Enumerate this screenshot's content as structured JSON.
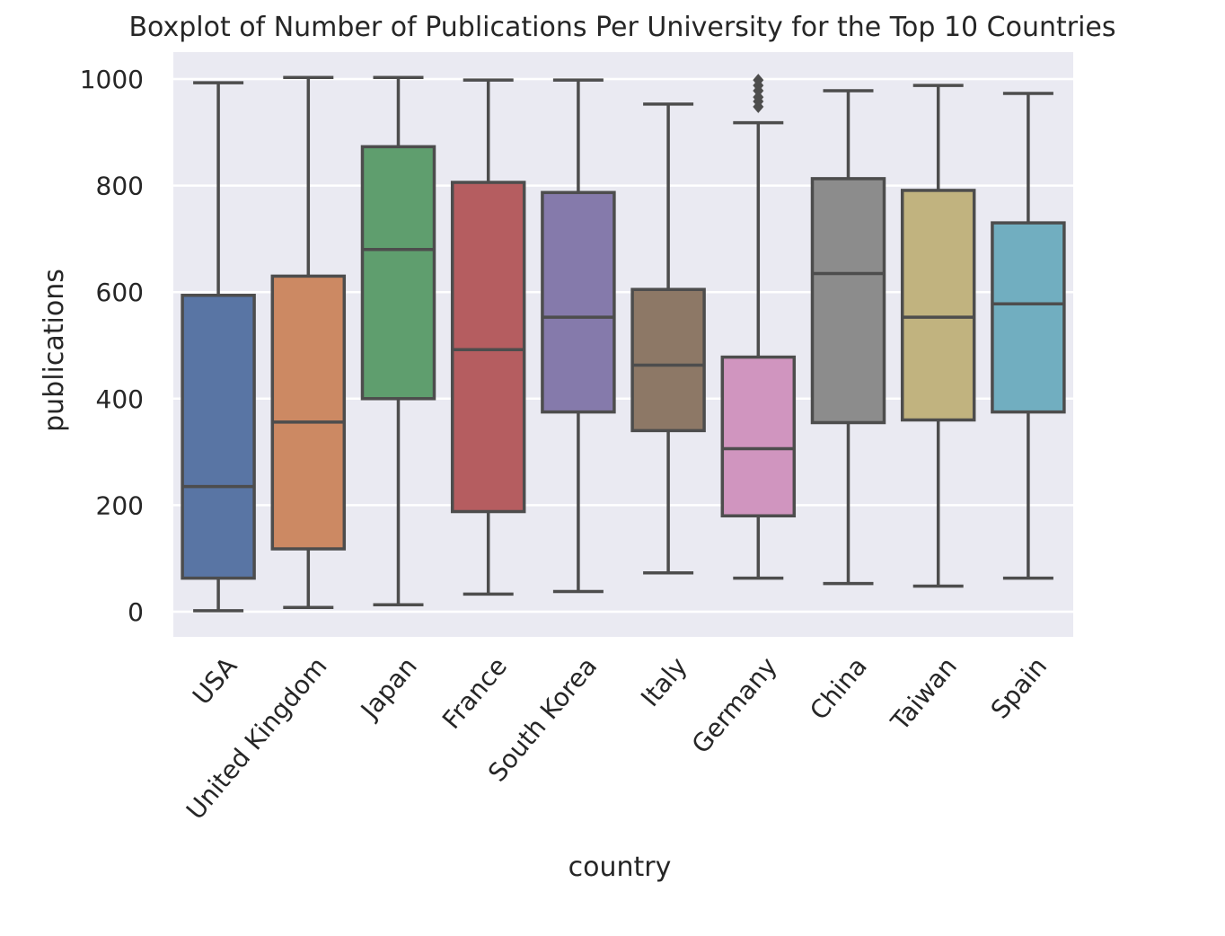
{
  "chart_data": {
    "type": "boxplot",
    "title": "Boxplot of Number of Publications Per University for the Top 10 Countries",
    "xlabel": "country",
    "ylabel": "publications",
    "ylim": [
      -45,
      1050
    ],
    "yticks": [
      0,
      200,
      400,
      600,
      800,
      1000
    ],
    "grid": true,
    "background": "#eaeaf2",
    "grid_color": "#ffffff",
    "line_color": "#4d4d4d",
    "categories": [
      "USA",
      "United Kingdom",
      "Japan",
      "France",
      "South Korea",
      "Italy",
      "Germany",
      "China",
      "Taiwan",
      "Spain"
    ],
    "boxes": [
      {
        "country": "USA",
        "color": "#5975a4",
        "whislo": 2,
        "q1": 63,
        "med": 235,
        "q3": 594,
        "whishi": 993,
        "fliers": []
      },
      {
        "country": "United Kingdom",
        "color": "#cc8963",
        "whislo": 8,
        "q1": 118,
        "med": 356,
        "q3": 630,
        "whishi": 1003,
        "fliers": []
      },
      {
        "country": "Japan",
        "color": "#5f9e6e",
        "whislo": 13,
        "q1": 400,
        "med": 680,
        "q3": 873,
        "whishi": 1003,
        "fliers": []
      },
      {
        "country": "France",
        "color": "#b55d60",
        "whislo": 33,
        "q1": 188,
        "med": 492,
        "q3": 806,
        "whishi": 998,
        "fliers": []
      },
      {
        "country": "South Korea",
        "color": "#857aab",
        "whislo": 38,
        "q1": 375,
        "med": 553,
        "q3": 787,
        "whishi": 998,
        "fliers": []
      },
      {
        "country": "Italy",
        "color": "#8d7866",
        "whislo": 73,
        "q1": 340,
        "med": 463,
        "q3": 605,
        "whishi": 953,
        "fliers": []
      },
      {
        "country": "Germany",
        "color": "#d095bf",
        "whislo": 63,
        "q1": 180,
        "med": 306,
        "q3": 478,
        "whishi": 918,
        "fliers": [
          948,
          958,
          966,
          978,
          988,
          998
        ]
      },
      {
        "country": "China",
        "color": "#8c8c8c",
        "whislo": 53,
        "q1": 355,
        "med": 635,
        "q3": 813,
        "whishi": 978,
        "fliers": []
      },
      {
        "country": "Taiwan",
        "color": "#c1b37f",
        "whislo": 48,
        "q1": 360,
        "med": 553,
        "q3": 791,
        "whishi": 988,
        "fliers": []
      },
      {
        "country": "Spain",
        "color": "#71aec0",
        "whislo": 63,
        "q1": 375,
        "med": 578,
        "q3": 730,
        "whishi": 973,
        "fliers": []
      }
    ]
  }
}
